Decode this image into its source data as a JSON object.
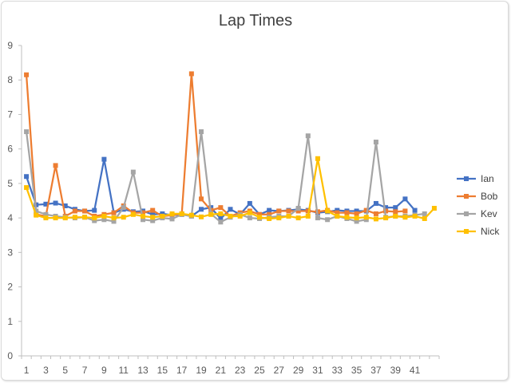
{
  "chart_data": {
    "type": "line",
    "title": "Lap Times",
    "xlabel": "",
    "ylabel": "",
    "ylim": [
      0,
      9
    ],
    "y_ticks": [
      "0",
      "1",
      "2",
      "3",
      "4",
      "5",
      "6",
      "7",
      "8",
      "9"
    ],
    "x_tick_labels": [
      "1",
      "3",
      "5",
      "7",
      "9",
      "11",
      "13",
      "15",
      "17",
      "19",
      "21",
      "23",
      "25",
      "27",
      "29",
      "31",
      "33",
      "35",
      "37",
      "39",
      "41"
    ],
    "x": [
      1,
      2,
      3,
      4,
      5,
      6,
      7,
      8,
      9,
      10,
      11,
      12,
      13,
      14,
      15,
      16,
      17,
      18,
      19,
      20,
      21,
      22,
      23,
      24,
      25,
      26,
      27,
      28,
      29,
      30,
      31,
      32,
      33,
      34,
      35,
      36,
      37,
      38,
      39,
      40,
      41,
      42,
      43
    ],
    "grid": false,
    "legend_position": "right",
    "series": [
      {
        "name": "Ian",
        "color": "#4472c4",
        "values": [
          5.2,
          4.38,
          4.4,
          4.43,
          4.35,
          4.25,
          4.2,
          4.22,
          5.7,
          4.15,
          4.25,
          4.18,
          4.2,
          4.1,
          4.12,
          4.08,
          4.1,
          4.05,
          4.25,
          4.3,
          3.98,
          4.25,
          4.1,
          4.42,
          4.1,
          4.22,
          4.2,
          4.22,
          4.25,
          4.22,
          4.15,
          4.18,
          4.22,
          4.2,
          4.2,
          4.2,
          4.42,
          4.3,
          4.3,
          4.55,
          4.22,
          null,
          null
        ]
      },
      {
        "name": "Bob",
        "color": "#ed7d31",
        "values": [
          8.15,
          4.1,
          4.05,
          5.52,
          4.05,
          4.2,
          4.2,
          4.05,
          4.1,
          4.15,
          4.35,
          4.15,
          4.15,
          4.22,
          4.05,
          4.08,
          4.12,
          8.18,
          4.55,
          4.22,
          4.3,
          4.05,
          4.15,
          4.2,
          4.1,
          4.1,
          4.2,
          4.2,
          4.2,
          4.2,
          4.18,
          4.22,
          4.15,
          4.15,
          4.12,
          4.22,
          4.12,
          4.2,
          4.18,
          4.2,
          null,
          null,
          null
        ]
      },
      {
        "name": "Kev",
        "color": "#a5a5a5",
        "values": [
          6.5,
          4.2,
          4.1,
          4.05,
          4.02,
          4.0,
          4.02,
          3.92,
          3.95,
          3.9,
          4.3,
          5.33,
          3.95,
          3.92,
          4.0,
          3.97,
          4.1,
          4.05,
          6.5,
          4.12,
          3.88,
          4.02,
          4.1,
          4.0,
          3.98,
          4.02,
          4.05,
          4.05,
          4.28,
          6.38,
          4.0,
          3.95,
          4.05,
          3.98,
          3.9,
          3.95,
          6.2,
          4.02,
          4.05,
          4.05,
          4.08,
          4.12,
          null
        ]
      },
      {
        "name": "Nick",
        "color": "#ffc000",
        "values": [
          4.88,
          4.08,
          4.0,
          4.0,
          4.0,
          4.02,
          4.02,
          4.0,
          4.05,
          4.0,
          4.02,
          4.1,
          4.05,
          4.02,
          4.05,
          4.12,
          4.12,
          4.08,
          4.03,
          4.1,
          4.12,
          4.05,
          4.05,
          4.15,
          4.02,
          3.98,
          4.0,
          4.05,
          4.0,
          4.05,
          5.72,
          4.2,
          4.05,
          4.02,
          4.0,
          4.02,
          3.97,
          4.0,
          4.05,
          4.02,
          4.05,
          3.98,
          4.28
        ]
      }
    ]
  }
}
